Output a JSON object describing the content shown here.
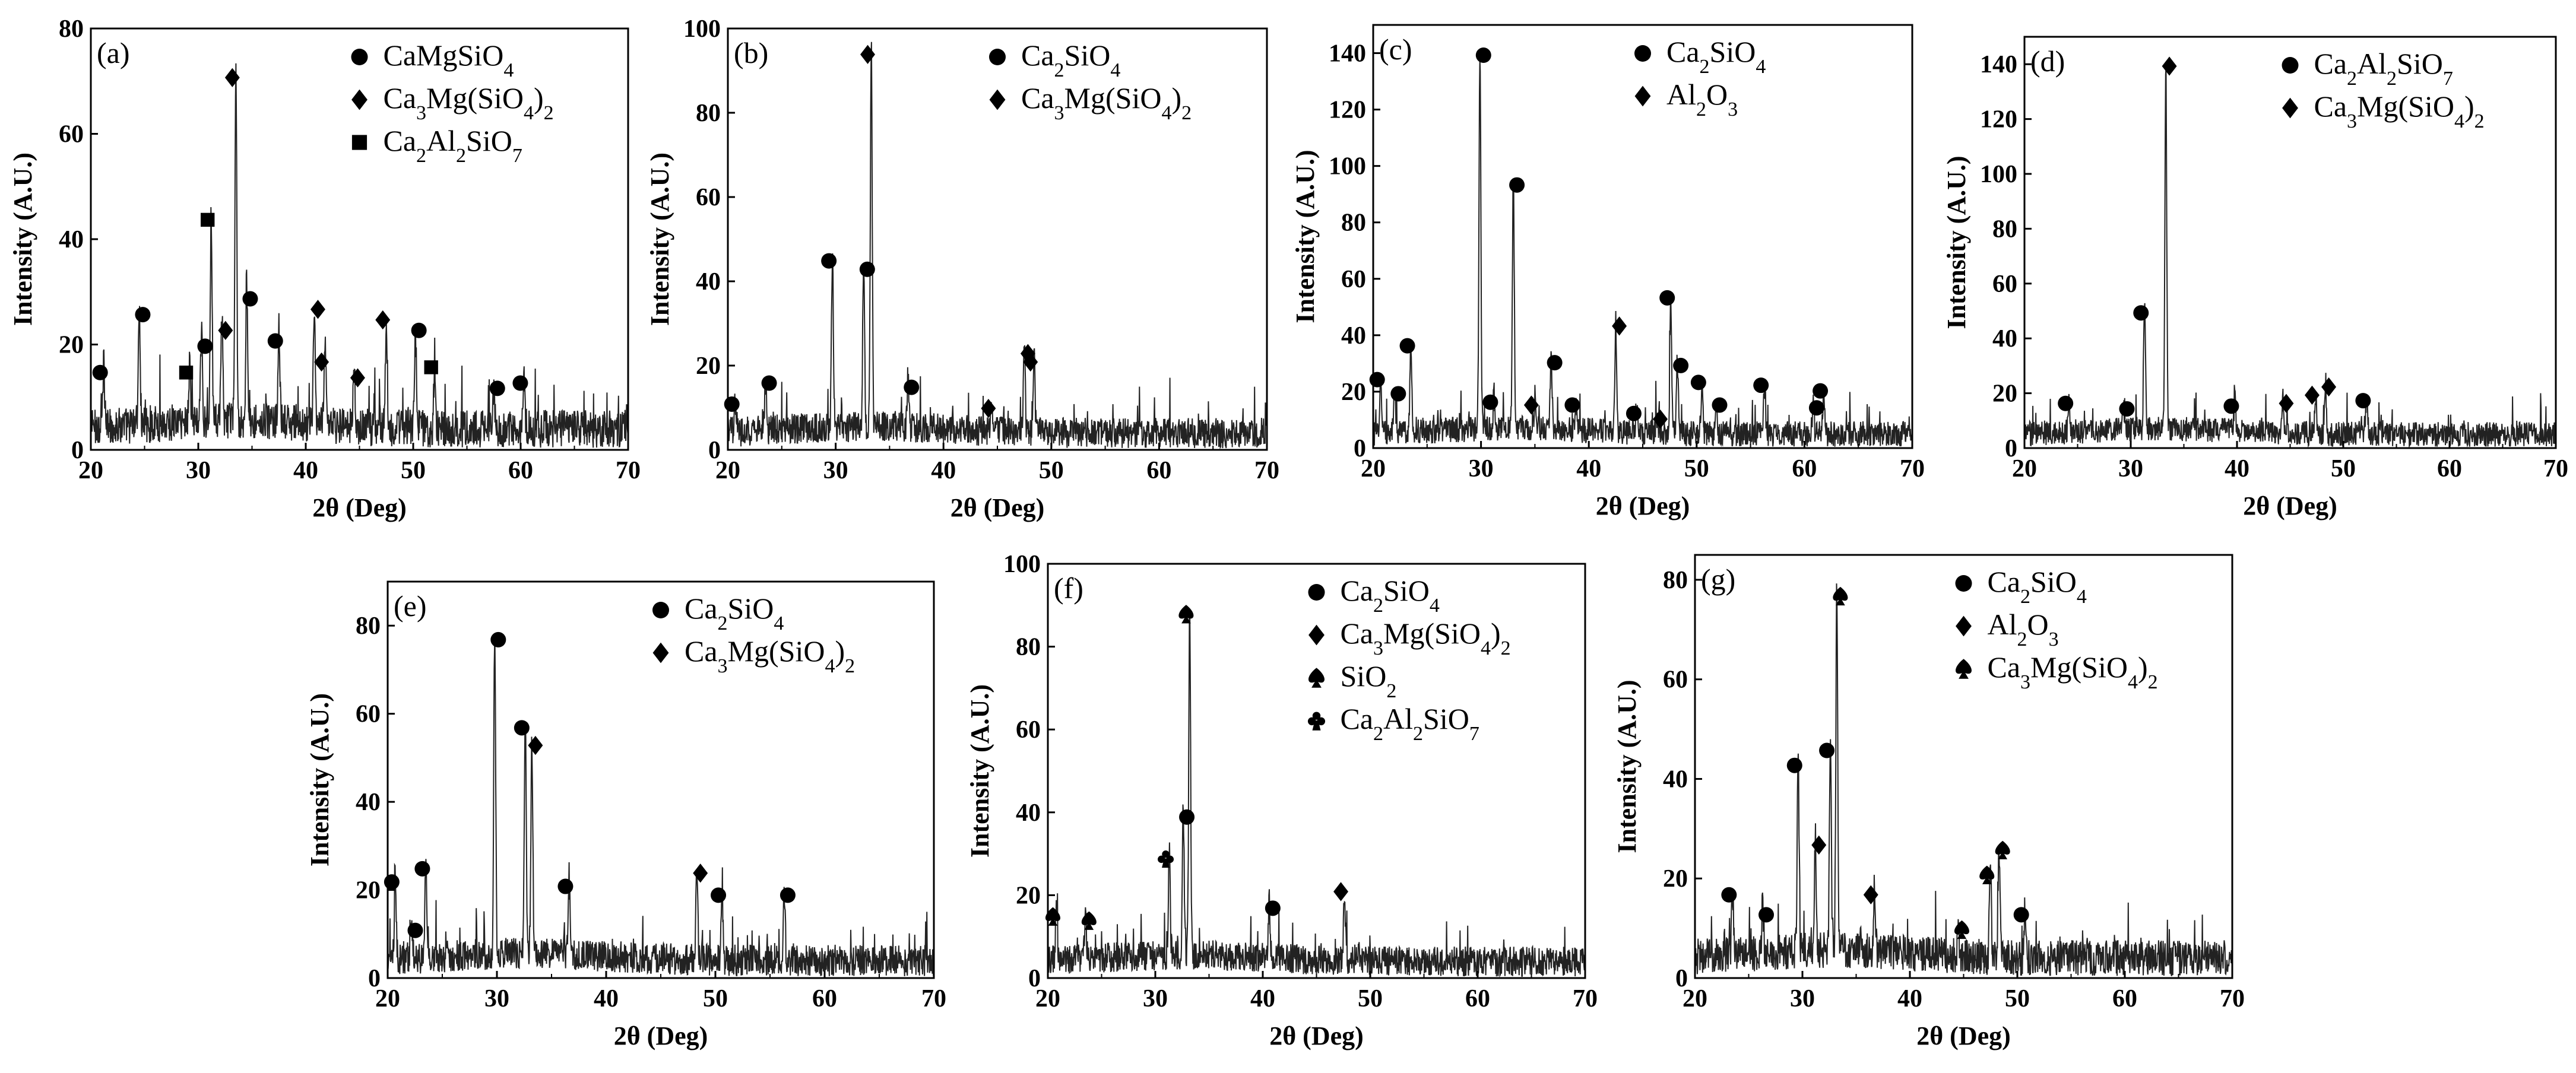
{
  "figure": {
    "xlabel": "2θ (Deg)",
    "ylabel": "Intensity (A.U.)"
  },
  "chart_data": [
    {
      "type": "line",
      "panel": "(a)",
      "xlabel": "2θ (Deg)",
      "ylabel": "Intensity (A.U.)",
      "xlim": [
        20,
        70
      ],
      "ylim": [
        0,
        80
      ],
      "xticks": [
        20,
        30,
        40,
        50,
        60,
        70
      ],
      "yticks": [
        0,
        20,
        40,
        60,
        80
      ],
      "legend": [
        {
          "marker": "circle",
          "label": "CaMgSiO4"
        },
        {
          "marker": "diamond",
          "label": "Ca3Mg(SiO4)2"
        },
        {
          "marker": "square",
          "label": "Ca2Al2SiO7"
        }
      ],
      "baseline": 4,
      "peaks": [
        {
          "x": 21.2,
          "y": 14,
          "m": "circle"
        },
        {
          "x": 24.5,
          "y": 25,
          "m": "circle"
        },
        {
          "x": 29.2,
          "y": 14,
          "m": "square"
        },
        {
          "x": 30.3,
          "y": 19,
          "m": "circle"
        },
        {
          "x": 31.2,
          "y": 43,
          "m": "square"
        },
        {
          "x": 32.2,
          "y": 22,
          "m": "diamond"
        },
        {
          "x": 33.5,
          "y": 70,
          "m": "diamond"
        },
        {
          "x": 34.5,
          "y": 28,
          "m": "circle"
        },
        {
          "x": 37.5,
          "y": 20,
          "m": "circle"
        },
        {
          "x": 40.8,
          "y": 26,
          "m": "diamond"
        },
        {
          "x": 41.8,
          "y": 16,
          "m": "diamond"
        },
        {
          "x": 44.5,
          "y": 13,
          "m": "diamond"
        },
        {
          "x": 47.5,
          "y": 24,
          "m": "diamond"
        },
        {
          "x": 50.2,
          "y": 22,
          "m": "circle"
        },
        {
          "x": 52.0,
          "y": 15,
          "m": "square"
        },
        {
          "x": 57.5,
          "y": 11,
          "m": "circle"
        },
        {
          "x": 60.3,
          "y": 12,
          "m": "circle"
        }
      ]
    },
    {
      "type": "line",
      "panel": "(b)",
      "xlabel": "2θ (Deg)",
      "ylabel": "Intensity (A.U.)",
      "xlim": [
        20,
        70
      ],
      "ylim": [
        0,
        100
      ],
      "xticks": [
        20,
        30,
        40,
        50,
        60,
        70
      ],
      "yticks": [
        0,
        20,
        40,
        60,
        80,
        100
      ],
      "legend": [
        {
          "marker": "circle",
          "label": "Ca2SiO4"
        },
        {
          "marker": "diamond",
          "label": "Ca3Mg(SiO4)2"
        }
      ],
      "baseline": 4,
      "peaks": [
        {
          "x": 20.7,
          "y": 10,
          "m": "circle"
        },
        {
          "x": 23.5,
          "y": 15,
          "m": "circle"
        },
        {
          "x": 29.7,
          "y": 44,
          "m": "circle"
        },
        {
          "x": 32.6,
          "y": 42,
          "m": "circle"
        },
        {
          "x": 33.3,
          "y": 93,
          "m": "diamond"
        },
        {
          "x": 36.7,
          "y": 14,
          "m": "circle"
        },
        {
          "x": 44.5,
          "y": 9,
          "m": "diamond"
        },
        {
          "x": 47.5,
          "y": 22,
          "m": "diamond"
        },
        {
          "x": 48.4,
          "y": 20,
          "m": "diamond"
        }
      ]
    },
    {
      "type": "line",
      "panel": "(c)",
      "xlabel": "2θ (Deg)",
      "ylabel": "Intensity (A.U.)",
      "xlim": [
        20,
        70
      ],
      "ylim": [
        0,
        150
      ],
      "xticks": [
        20,
        30,
        40,
        50,
        60,
        70
      ],
      "yticks": [
        0,
        20,
        40,
        60,
        80,
        100,
        120,
        140
      ],
      "legend": [
        {
          "marker": "circle",
          "label": "Ca2SiO4"
        },
        {
          "marker": "diamond",
          "label": "Al2O3"
        }
      ],
      "baseline": 5,
      "peaks": [
        {
          "x": 20.7,
          "y": 23,
          "m": "circle"
        },
        {
          "x": 22.0,
          "y": 18,
          "m": "circle"
        },
        {
          "x": 23.5,
          "y": 35,
          "m": "circle"
        },
        {
          "x": 29.9,
          "y": 138,
          "m": "circle"
        },
        {
          "x": 31.2,
          "y": 15,
          "m": "circle"
        },
        {
          "x": 33.0,
          "y": 92,
          "m": "circle"
        },
        {
          "x": 35.0,
          "y": 14,
          "m": "diamond"
        },
        {
          "x": 36.5,
          "y": 29,
          "m": "circle"
        },
        {
          "x": 38.8,
          "y": 14,
          "m": "circle"
        },
        {
          "x": 42.5,
          "y": 42,
          "m": "diamond"
        },
        {
          "x": 44.5,
          "y": 11,
          "m": "circle"
        },
        {
          "x": 46.3,
          "y": 9,
          "m": "diamond"
        },
        {
          "x": 47.6,
          "y": 52,
          "m": "circle"
        },
        {
          "x": 48.2,
          "y": 28,
          "m": "circle"
        },
        {
          "x": 50.5,
          "y": 22,
          "m": "circle"
        },
        {
          "x": 51.8,
          "y": 14,
          "m": "circle"
        },
        {
          "x": 56.3,
          "y": 21,
          "m": "circle"
        },
        {
          "x": 60.8,
          "y": 13,
          "m": "circle"
        },
        {
          "x": 61.8,
          "y": 19,
          "m": "circle"
        }
      ]
    },
    {
      "type": "line",
      "panel": "(d)",
      "xlabel": "2θ (Deg)",
      "ylabel": "Intensity (A.U.)",
      "xlim": [
        20,
        70
      ],
      "ylim": [
        0,
        150
      ],
      "xticks": [
        20,
        30,
        40,
        50,
        60,
        70
      ],
      "yticks": [
        0,
        20,
        40,
        60,
        80,
        100,
        120,
        140
      ],
      "legend": [
        {
          "marker": "circle",
          "label": "Ca2Al2SiO7"
        },
        {
          "marker": "diamond",
          "label": "Ca3Mg(SiO4)2"
        }
      ],
      "baseline": 5,
      "peaks": [
        {
          "x": 24.2,
          "y": 15,
          "m": "circle"
        },
        {
          "x": 29.3,
          "y": 13,
          "m": "circle"
        },
        {
          "x": 31.3,
          "y": 48,
          "m": "circle"
        },
        {
          "x": 33.3,
          "y": 138,
          "m": "diamond"
        },
        {
          "x": 39.8,
          "y": 14,
          "m": "circle"
        },
        {
          "x": 44.3,
          "y": 15,
          "m": "diamond"
        },
        {
          "x": 47.4,
          "y": 18,
          "m": "diamond"
        },
        {
          "x": 48.3,
          "y": 21,
          "m": "diamond"
        },
        {
          "x": 52.2,
          "y": 16,
          "m": "circle"
        }
      ]
    },
    {
      "type": "line",
      "panel": "(e)",
      "xlabel": "2θ (Deg)",
      "ylabel": "Intensity (A.U.)",
      "xlim": [
        20,
        70
      ],
      "ylim": [
        0,
        90
      ],
      "xticks": [
        20,
        30,
        40,
        50,
        60,
        70
      ],
      "yticks": [
        0,
        20,
        40,
        60,
        80
      ],
      "legend": [
        {
          "marker": "circle",
          "label": "Ca2SiO4"
        },
        {
          "marker": "diamond",
          "label": "Ca3Mg(SiO4)2"
        }
      ],
      "baseline": 4,
      "peaks": [
        {
          "x": 20.7,
          "y": 21,
          "m": "circle"
        },
        {
          "x": 22.2,
          "y": 10,
          "m": "circle"
        },
        {
          "x": 23.5,
          "y": 24,
          "m": "circle"
        },
        {
          "x": 29.8,
          "y": 76,
          "m": "circle"
        },
        {
          "x": 32.6,
          "y": 56,
          "m": "circle"
        },
        {
          "x": 33.2,
          "y": 52,
          "m": "diamond"
        },
        {
          "x": 36.6,
          "y": 20,
          "m": "circle"
        },
        {
          "x": 48.3,
          "y": 23,
          "m": "diamond"
        },
        {
          "x": 50.6,
          "y": 18,
          "m": "circle"
        },
        {
          "x": 56.3,
          "y": 18,
          "m": "circle"
        }
      ]
    },
    {
      "type": "line",
      "panel": "(f)",
      "xlabel": "2θ (Deg)",
      "ylabel": "Intensity (A.U.)",
      "xlim": [
        20,
        70
      ],
      "ylim": [
        0,
        100
      ],
      "xticks": [
        20,
        30,
        40,
        50,
        60,
        70
      ],
      "yticks": [
        0,
        20,
        40,
        60,
        80,
        100
      ],
      "legend": [
        {
          "marker": "circle",
          "label": "Ca2SiO4"
        },
        {
          "marker": "diamond",
          "label": "Ca3Mg(SiO4)2"
        },
        {
          "marker": "spade",
          "label": "SiO2"
        },
        {
          "marker": "club",
          "label": "Ca2Al2SiO7"
        }
      ],
      "baseline": 4,
      "peaks": [
        {
          "x": 20.8,
          "y": 14,
          "m": "spade"
        },
        {
          "x": 23.5,
          "y": 13,
          "m": "spade"
        },
        {
          "x": 31.3,
          "y": 28,
          "m": "club"
        },
        {
          "x": 32.6,
          "y": 38,
          "m": "circle"
        },
        {
          "x": 33.2,
          "y": 87,
          "m": "spade"
        },
        {
          "x": 40.6,
          "y": 16,
          "m": "circle"
        },
        {
          "x": 47.6,
          "y": 20,
          "m": "diamond"
        }
      ]
    },
    {
      "type": "line",
      "panel": "(g)",
      "xlabel": "2θ (Deg)",
      "ylabel": "Intensity (A.U.)",
      "xlim": [
        20,
        70
      ],
      "ylim": [
        0,
        85
      ],
      "xticks": [
        20,
        30,
        40,
        50,
        60,
        70
      ],
      "yticks": [
        0,
        20,
        40,
        60,
        80
      ],
      "legend": [
        {
          "marker": "circle",
          "label": "Ca2SiO4"
        },
        {
          "marker": "diamond",
          "label": "Al2O3"
        },
        {
          "marker": "spade",
          "label": "Ca3Mg(SiO4)2"
        }
      ],
      "baseline": 4,
      "peaks": [
        {
          "x": 23.5,
          "y": 16,
          "m": "circle"
        },
        {
          "x": 26.3,
          "y": 12,
          "m": "circle"
        },
        {
          "x": 29.6,
          "y": 42,
          "m": "circle"
        },
        {
          "x": 31.2,
          "y": 26,
          "m": "diamond"
        },
        {
          "x": 32.6,
          "y": 45,
          "m": "circle"
        },
        {
          "x": 33.2,
          "y": 76,
          "m": "spade"
        },
        {
          "x": 36.7,
          "y": 16,
          "m": "diamond"
        },
        {
          "x": 44.5,
          "y": 9,
          "m": "spade"
        },
        {
          "x": 47.5,
          "y": 20,
          "m": "spade"
        },
        {
          "x": 48.3,
          "y": 25,
          "m": "spade"
        },
        {
          "x": 50.7,
          "y": 12,
          "m": "circle"
        }
      ]
    }
  ]
}
